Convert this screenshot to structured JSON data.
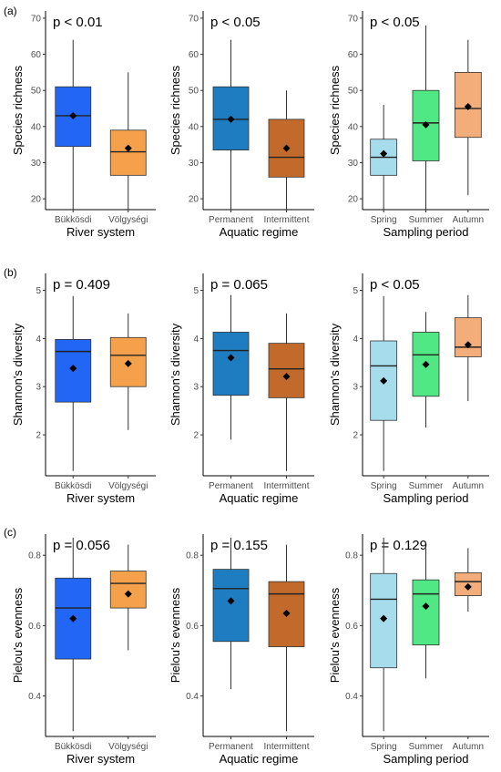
{
  "figure": {
    "rows": [
      {
        "label": "(a)",
        "ylabel": "Species richness"
      },
      {
        "label": "(b)",
        "ylabel": "Shannon's diversity"
      },
      {
        "label": "(c)",
        "ylabel": "Pielou's evenness"
      }
    ],
    "columns": [
      {
        "xlabel": "River system"
      },
      {
        "xlabel": "Aquatic regime"
      },
      {
        "xlabel": "Sampling period"
      }
    ]
  },
  "chart_data": [
    {
      "type": "box",
      "row": 0,
      "col": 0,
      "title": "p < 0.01",
      "xlabel": "River system",
      "ylabel": "Species richness",
      "ylim": [
        17,
        72
      ],
      "yticks": [
        20,
        30,
        40,
        50,
        60,
        70
      ],
      "categories": [
        "Bükkösdi",
        "Völgységi"
      ],
      "boxes": [
        {
          "category": "Bükkösdi",
          "min": 17,
          "q1": 34.5,
          "median": 43,
          "q3": 51,
          "max": 64,
          "mean": 43,
          "color": "#2166f5"
        },
        {
          "category": "Völgységi",
          "min": 17,
          "q1": 26.5,
          "median": 33,
          "q3": 39,
          "max": 55,
          "mean": 34,
          "color": "#f5a04a"
        }
      ]
    },
    {
      "type": "box",
      "row": 0,
      "col": 1,
      "title": "p < 0.05",
      "xlabel": "Aquatic regime",
      "ylabel": "Species richness",
      "ylim": [
        17,
        72
      ],
      "yticks": [
        20,
        30,
        40,
        50,
        60,
        70
      ],
      "categories": [
        "Permanent",
        "Intermittent"
      ],
      "boxes": [
        {
          "category": "Permanent",
          "min": 17,
          "q1": 33.5,
          "median": 42,
          "q3": 51,
          "max": 64,
          "mean": 42,
          "color": "#1e7cc0"
        },
        {
          "category": "Intermittent",
          "min": 17,
          "q1": 26,
          "median": 31.5,
          "q3": 42,
          "max": 50,
          "mean": 34,
          "color": "#c26a2c"
        }
      ]
    },
    {
      "type": "box",
      "row": 0,
      "col": 2,
      "title": "p < 0.05",
      "xlabel": "Sampling period",
      "ylabel": "Species richness",
      "ylim": [
        17,
        72
      ],
      "yticks": [
        20,
        30,
        40,
        50,
        60,
        70
      ],
      "categories": [
        "Spring",
        "Summer",
        "Autumn"
      ],
      "boxes": [
        {
          "category": "Spring",
          "min": 17,
          "q1": 26.5,
          "median": 31.5,
          "q3": 36.5,
          "max": 46,
          "mean": 32.5,
          "color": "#a6dcec"
        },
        {
          "category": "Summer",
          "min": 17,
          "q1": 30.5,
          "median": 41,
          "q3": 50,
          "max": 68,
          "mean": 40.5,
          "color": "#4fe884"
        },
        {
          "category": "Autumn",
          "min": 21,
          "q1": 37,
          "median": 45,
          "q3": 55,
          "max": 64,
          "mean": 45.5,
          "color": "#f2ad7a"
        }
      ]
    },
    {
      "type": "box",
      "row": 1,
      "col": 0,
      "title": "p = 0.409",
      "xlabel": "River system",
      "ylabel": "Shannon's diversity",
      "ylim": [
        1.15,
        5.35
      ],
      "yticks": [
        2,
        3,
        4,
        5
      ],
      "categories": [
        "Bükkösdi",
        "Völgységi"
      ],
      "boxes": [
        {
          "category": "Bükkösdi",
          "min": 1.25,
          "q1": 2.68,
          "median": 3.73,
          "q3": 3.98,
          "max": 4.88,
          "mean": 3.38,
          "color": "#2166f5"
        },
        {
          "category": "Völgységi",
          "min": 2.1,
          "q1": 3.0,
          "median": 3.65,
          "q3": 4.02,
          "max": 4.52,
          "mean": 3.48,
          "color": "#f5a04a"
        }
      ]
    },
    {
      "type": "box",
      "row": 1,
      "col": 1,
      "title": "p = 0.065",
      "xlabel": "Aquatic regime",
      "ylabel": "Shannon's diversity",
      "ylim": [
        1.15,
        5.35
      ],
      "yticks": [
        2,
        3,
        4,
        5
      ],
      "categories": [
        "Permanent",
        "Intermittent"
      ],
      "boxes": [
        {
          "category": "Permanent",
          "min": 1.9,
          "q1": 2.82,
          "median": 3.75,
          "q3": 4.13,
          "max": 4.9,
          "mean": 3.6,
          "color": "#1e7cc0"
        },
        {
          "category": "Intermittent",
          "min": 1.25,
          "q1": 2.77,
          "median": 3.37,
          "q3": 3.9,
          "max": 4.52,
          "mean": 3.21,
          "color": "#c26a2c"
        }
      ]
    },
    {
      "type": "box",
      "row": 1,
      "col": 2,
      "title": "p < 0.05",
      "xlabel": "Sampling period",
      "ylabel": "Shannon's diversity",
      "ylim": [
        1.15,
        5.35
      ],
      "yticks": [
        2,
        3,
        4,
        5
      ],
      "categories": [
        "Spring",
        "Summer",
        "Autumn"
      ],
      "boxes": [
        {
          "category": "Spring",
          "min": 1.25,
          "q1": 2.3,
          "median": 3.43,
          "q3": 3.95,
          "max": 4.88,
          "mean": 3.12,
          "color": "#a6dcec"
        },
        {
          "category": "Summer",
          "min": 2.15,
          "q1": 2.8,
          "median": 3.66,
          "q3": 4.13,
          "max": 4.55,
          "mean": 3.46,
          "color": "#4fe884"
        },
        {
          "category": "Autumn",
          "min": 2.7,
          "q1": 3.62,
          "median": 3.82,
          "q3": 4.43,
          "max": 4.9,
          "mean": 3.87,
          "color": "#f2ad7a"
        }
      ]
    },
    {
      "type": "box",
      "row": 2,
      "col": 0,
      "title": "p = 0.056",
      "xlabel": "River system",
      "ylabel": "Pielou's evenness",
      "ylim": [
        0.285,
        0.86
      ],
      "yticks": [
        0.4,
        0.6,
        0.8
      ],
      "categories": [
        "Bükkösdi",
        "Völgységi"
      ],
      "boxes": [
        {
          "category": "Bükkösdi",
          "min": 0.3,
          "q1": 0.505,
          "median": 0.65,
          "q3": 0.735,
          "max": 0.85,
          "mean": 0.62,
          "color": "#2166f5"
        },
        {
          "category": "Völgységi",
          "min": 0.53,
          "q1": 0.65,
          "median": 0.72,
          "q3": 0.755,
          "max": 0.83,
          "mean": 0.69,
          "color": "#f5a04a"
        }
      ]
    },
    {
      "type": "box",
      "row": 2,
      "col": 1,
      "title": "p = 0.155",
      "xlabel": "Aquatic regime",
      "ylabel": "Pielou's evenness",
      "ylim": [
        0.285,
        0.86
      ],
      "yticks": [
        0.4,
        0.6,
        0.8
      ],
      "categories": [
        "Permanent",
        "Intermittent"
      ],
      "boxes": [
        {
          "category": "Permanent",
          "min": 0.42,
          "q1": 0.555,
          "median": 0.705,
          "q3": 0.76,
          "max": 0.85,
          "mean": 0.67,
          "color": "#1e7cc0"
        },
        {
          "category": "Intermittent",
          "min": 0.3,
          "q1": 0.54,
          "median": 0.69,
          "q3": 0.725,
          "max": 0.83,
          "mean": 0.635,
          "color": "#c26a2c"
        }
      ]
    },
    {
      "type": "box",
      "row": 2,
      "col": 2,
      "title": "p = 0.129",
      "xlabel": "Sampling period",
      "ylabel": "Pielou's evenness",
      "ylim": [
        0.285,
        0.86
      ],
      "yticks": [
        0.4,
        0.6,
        0.8
      ],
      "categories": [
        "Spring",
        "Summer",
        "Autumn"
      ],
      "boxes": [
        {
          "category": "Spring",
          "min": 0.3,
          "q1": 0.48,
          "median": 0.675,
          "q3": 0.748,
          "max": 0.85,
          "mean": 0.62,
          "color": "#a6dcec"
        },
        {
          "category": "Summer",
          "min": 0.45,
          "q1": 0.545,
          "median": 0.69,
          "q3": 0.73,
          "max": 0.82,
          "mean": 0.655,
          "color": "#4fe884"
        },
        {
          "category": "Autumn",
          "min": 0.64,
          "q1": 0.685,
          "median": 0.725,
          "q3": 0.75,
          "max": 0.82,
          "mean": 0.71,
          "color": "#f2ad7a"
        }
      ]
    }
  ]
}
